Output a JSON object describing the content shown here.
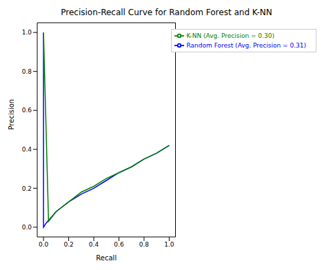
{
  "chart_data": {
    "type": "line",
    "title": "Precision-Recall Curve for Random Forest and K-NN",
    "x_label": "Recall",
    "y_label": "Precision",
    "xlim": [
      -0.05,
      1.05
    ],
    "ylim": [
      -0.05,
      1.05
    ],
    "xticks": [
      {
        "value": 0,
        "label": "0.0"
      },
      {
        "value": 0.2,
        "label": "0.2"
      },
      {
        "value": 0.4,
        "label": "0.4"
      },
      {
        "value": 0.6,
        "label": "0.6"
      },
      {
        "value": 0.8,
        "label": "0.8"
      },
      {
        "value": 1,
        "label": "1.0"
      }
    ],
    "yticks": [
      {
        "value": 0,
        "label": "0.0"
      },
      {
        "value": 0.2,
        "label": "0.2"
      },
      {
        "value": 0.4,
        "label": "0.4"
      },
      {
        "value": 0.6,
        "label": "0.6"
      },
      {
        "value": 0.8,
        "label": "0.8"
      },
      {
        "value": 1,
        "label": "1.0"
      }
    ],
    "legend": "upper right",
    "grid": false,
    "series": [
      {
        "name": "Random Forest (Avg. Precision = 0.31)",
        "color": "#0000ff",
        "x": [
          0,
          0,
          0.02,
          0.1,
          0.2,
          0.3,
          0.4,
          0.5,
          0.6,
          0.7,
          0.8,
          0.9,
          1.0
        ],
        "values": [
          1.0,
          0.0,
          0.02,
          0.08,
          0.13,
          0.17,
          0.2,
          0.24,
          0.28,
          0.31,
          0.35,
          0.38,
          0.42
        ]
      },
      {
        "name": "K-NN (Avg. Precision = 0.30)",
        "color": "#008000",
        "x": [
          0,
          0.04,
          0.1,
          0.2,
          0.3,
          0.4,
          0.5,
          0.6,
          0.7,
          0.8,
          0.9,
          1.0
        ],
        "values": [
          1.0,
          0.03,
          0.08,
          0.13,
          0.18,
          0.21,
          0.25,
          0.28,
          0.31,
          0.35,
          0.38,
          0.42
        ]
      }
    ]
  }
}
